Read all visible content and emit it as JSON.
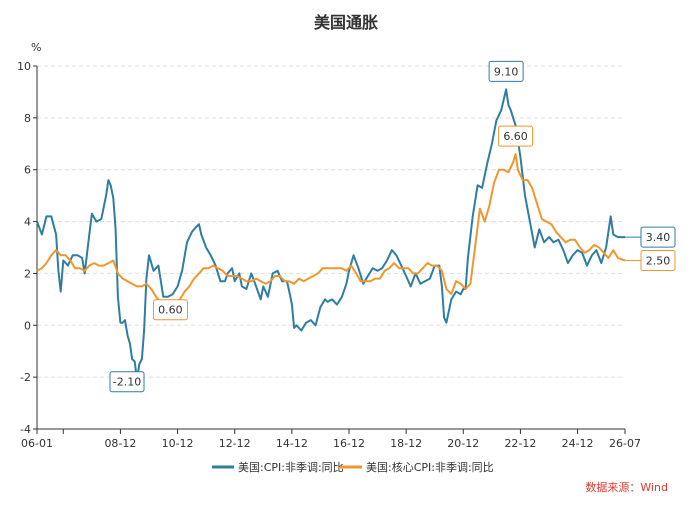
{
  "chart_data": {
    "type": "line",
    "title": "美国通胀",
    "ylabel": "%",
    "ylim": [
      -4,
      10
    ],
    "yticks": [
      -4,
      -2,
      0,
      2,
      4,
      6,
      8,
      10
    ],
    "xlim": [
      2006.0,
      2026.58
    ],
    "xticks": [
      {
        "x": 2006.0,
        "label": "06-01"
      },
      {
        "x": 2008.92,
        "label": "08-12"
      },
      {
        "x": 2010.92,
        "label": "10-12"
      },
      {
        "x": 2012.92,
        "label": "12-12"
      },
      {
        "x": 2014.92,
        "label": "14-12"
      },
      {
        "x": 2016.92,
        "label": "16-12"
      },
      {
        "x": 2018.92,
        "label": "18-12"
      },
      {
        "x": 2020.92,
        "label": "20-12"
      },
      {
        "x": 2022.92,
        "label": "22-12"
      },
      {
        "x": 2024.92,
        "label": "24-12"
      },
      {
        "x": 2026.58,
        "label": "26-07"
      }
    ],
    "grid": "horizontal-dashed",
    "legend_position": "bottom",
    "source": "数据来源：Wind",
    "series": [
      {
        "name": "美国:CPI:非季调:同比",
        "color": "#2e7ea3",
        "points": [
          [
            2006.0,
            4.0
          ],
          [
            2006.17,
            3.5
          ],
          [
            2006.33,
            4.2
          ],
          [
            2006.5,
            4.2
          ],
          [
            2006.67,
            3.5
          ],
          [
            2006.75,
            2.1
          ],
          [
            2006.83,
            1.3
          ],
          [
            2006.92,
            2.5
          ],
          [
            2007.08,
            2.3
          ],
          [
            2007.25,
            2.7
          ],
          [
            2007.42,
            2.7
          ],
          [
            2007.58,
            2.6
          ],
          [
            2007.67,
            2.0
          ],
          [
            2007.83,
            3.5
          ],
          [
            2007.92,
            4.3
          ],
          [
            2008.08,
            4.0
          ],
          [
            2008.25,
            4.1
          ],
          [
            2008.42,
            5.0
          ],
          [
            2008.5,
            5.6
          ],
          [
            2008.58,
            5.4
          ],
          [
            2008.67,
            4.9
          ],
          [
            2008.75,
            3.7
          ],
          [
            2008.83,
            1.1
          ],
          [
            2008.92,
            0.1
          ],
          [
            2009.0,
            0.1
          ],
          [
            2009.08,
            0.2
          ],
          [
            2009.17,
            -0.4
          ],
          [
            2009.25,
            -0.7
          ],
          [
            2009.33,
            -1.3
          ],
          [
            2009.42,
            -1.4
          ],
          [
            2009.5,
            -2.1
          ],
          [
            2009.58,
            -1.5
          ],
          [
            2009.67,
            -1.3
          ],
          [
            2009.75,
            -0.2
          ],
          [
            2009.83,
            1.8
          ],
          [
            2009.92,
            2.7
          ],
          [
            2010.08,
            2.1
          ],
          [
            2010.25,
            2.3
          ],
          [
            2010.42,
            1.1
          ],
          [
            2010.58,
            1.1
          ],
          [
            2010.75,
            1.2
          ],
          [
            2010.92,
            1.5
          ],
          [
            2011.08,
            2.1
          ],
          [
            2011.25,
            3.2
          ],
          [
            2011.42,
            3.6
          ],
          [
            2011.58,
            3.8
          ],
          [
            2011.67,
            3.9
          ],
          [
            2011.75,
            3.5
          ],
          [
            2011.92,
            3.0
          ],
          [
            2012.08,
            2.7
          ],
          [
            2012.25,
            2.3
          ],
          [
            2012.42,
            1.7
          ],
          [
            2012.58,
            1.7
          ],
          [
            2012.67,
            2.0
          ],
          [
            2012.83,
            2.2
          ],
          [
            2012.92,
            1.7
          ],
          [
            2013.08,
            2.0
          ],
          [
            2013.17,
            1.5
          ],
          [
            2013.33,
            1.4
          ],
          [
            2013.5,
            2.0
          ],
          [
            2013.67,
            1.5
          ],
          [
            2013.83,
            1.0
          ],
          [
            2013.92,
            1.5
          ],
          [
            2014.08,
            1.1
          ],
          [
            2014.25,
            2.0
          ],
          [
            2014.42,
            2.1
          ],
          [
            2014.58,
            1.7
          ],
          [
            2014.75,
            1.7
          ],
          [
            2014.83,
            1.3
          ],
          [
            2014.92,
            0.8
          ],
          [
            2015.0,
            -0.1
          ],
          [
            2015.08,
            0.0
          ],
          [
            2015.25,
            -0.2
          ],
          [
            2015.42,
            0.1
          ],
          [
            2015.58,
            0.2
          ],
          [
            2015.75,
            0.0
          ],
          [
            2015.92,
            0.7
          ],
          [
            2016.08,
            1.0
          ],
          [
            2016.17,
            0.9
          ],
          [
            2016.33,
            1.0
          ],
          [
            2016.5,
            0.8
          ],
          [
            2016.67,
            1.1
          ],
          [
            2016.83,
            1.6
          ],
          [
            2016.92,
            2.1
          ],
          [
            2017.08,
            2.7
          ],
          [
            2017.25,
            2.2
          ],
          [
            2017.42,
            1.6
          ],
          [
            2017.58,
            1.9
          ],
          [
            2017.75,
            2.2
          ],
          [
            2017.92,
            2.1
          ],
          [
            2018.08,
            2.2
          ],
          [
            2018.25,
            2.5
          ],
          [
            2018.42,
            2.9
          ],
          [
            2018.58,
            2.7
          ],
          [
            2018.75,
            2.3
          ],
          [
            2018.92,
            1.9
          ],
          [
            2019.08,
            1.5
          ],
          [
            2019.25,
            2.0
          ],
          [
            2019.42,
            1.6
          ],
          [
            2019.58,
            1.7
          ],
          [
            2019.75,
            1.8
          ],
          [
            2019.92,
            2.3
          ],
          [
            2020.08,
            2.3
          ],
          [
            2020.17,
            1.5
          ],
          [
            2020.25,
            0.3
          ],
          [
            2020.33,
            0.1
          ],
          [
            2020.5,
            1.0
          ],
          [
            2020.67,
            1.3
          ],
          [
            2020.83,
            1.2
          ],
          [
            2020.92,
            1.4
          ],
          [
            2021.0,
            1.4
          ],
          [
            2021.08,
            2.6
          ],
          [
            2021.25,
            4.2
          ],
          [
            2021.42,
            5.4
          ],
          [
            2021.58,
            5.3
          ],
          [
            2021.75,
            6.2
          ],
          [
            2021.92,
            7.0
          ],
          [
            2022.08,
            7.9
          ],
          [
            2022.25,
            8.3
          ],
          [
            2022.42,
            9.1
          ],
          [
            2022.5,
            8.5
          ],
          [
            2022.58,
            8.3
          ],
          [
            2022.75,
            7.7
          ],
          [
            2022.92,
            6.5
          ],
          [
            2023.08,
            5.0
          ],
          [
            2023.25,
            4.0
          ],
          [
            2023.42,
            3.0
          ],
          [
            2023.58,
            3.7
          ],
          [
            2023.75,
            3.2
          ],
          [
            2023.92,
            3.4
          ],
          [
            2024.08,
            3.2
          ],
          [
            2024.25,
            3.3
          ],
          [
            2024.42,
            2.9
          ],
          [
            2024.58,
            2.4
          ],
          [
            2024.75,
            2.7
          ],
          [
            2024.92,
            2.9
          ],
          [
            2025.08,
            2.8
          ],
          [
            2025.25,
            2.3
          ],
          [
            2025.42,
            2.7
          ],
          [
            2025.58,
            2.9
          ],
          [
            2025.75,
            2.4
          ],
          [
            2025.92,
            3.0
          ],
          [
            2026.08,
            4.2
          ],
          [
            2026.17,
            3.5
          ],
          [
            2026.33,
            3.4
          ],
          [
            2026.58,
            3.4
          ]
        ]
      },
      {
        "name": "美国:核心CPI:非季调:同比",
        "color": "#f0962e",
        "points": [
          [
            2006.0,
            2.1
          ],
          [
            2006.17,
            2.2
          ],
          [
            2006.33,
            2.4
          ],
          [
            2006.5,
            2.7
          ],
          [
            2006.67,
            2.9
          ],
          [
            2006.83,
            2.7
          ],
          [
            2007.0,
            2.7
          ],
          [
            2007.17,
            2.5
          ],
          [
            2007.33,
            2.2
          ],
          [
            2007.5,
            2.2
          ],
          [
            2007.67,
            2.1
          ],
          [
            2007.83,
            2.3
          ],
          [
            2008.0,
            2.4
          ],
          [
            2008.17,
            2.3
          ],
          [
            2008.33,
            2.3
          ],
          [
            2008.5,
            2.4
          ],
          [
            2008.67,
            2.5
          ],
          [
            2008.83,
            2.0
          ],
          [
            2009.0,
            1.8
          ],
          [
            2009.17,
            1.7
          ],
          [
            2009.33,
            1.6
          ],
          [
            2009.5,
            1.5
          ],
          [
            2009.67,
            1.5
          ],
          [
            2009.83,
            1.6
          ],
          [
            2010.0,
            1.4
          ],
          [
            2010.17,
            1.1
          ],
          [
            2010.33,
            0.9
          ],
          [
            2010.5,
            0.9
          ],
          [
            2010.67,
            0.6
          ],
          [
            2010.83,
            0.8
          ],
          [
            2011.0,
            1.0
          ],
          [
            2011.17,
            1.3
          ],
          [
            2011.33,
            1.5
          ],
          [
            2011.5,
            1.8
          ],
          [
            2011.67,
            2.0
          ],
          [
            2011.83,
            2.2
          ],
          [
            2012.0,
            2.2
          ],
          [
            2012.17,
            2.3
          ],
          [
            2012.33,
            2.2
          ],
          [
            2012.5,
            2.1
          ],
          [
            2012.67,
            1.9
          ],
          [
            2012.83,
            1.9
          ],
          [
            2013.0,
            1.9
          ],
          [
            2013.17,
            1.8
          ],
          [
            2013.33,
            1.7
          ],
          [
            2013.5,
            1.7
          ],
          [
            2013.67,
            1.8
          ],
          [
            2013.83,
            1.7
          ],
          [
            2014.0,
            1.6
          ],
          [
            2014.17,
            1.7
          ],
          [
            2014.33,
            1.9
          ],
          [
            2014.5,
            1.9
          ],
          [
            2014.67,
            1.7
          ],
          [
            2014.83,
            1.7
          ],
          [
            2015.0,
            1.6
          ],
          [
            2015.17,
            1.8
          ],
          [
            2015.33,
            1.7
          ],
          [
            2015.5,
            1.8
          ],
          [
            2015.67,
            1.9
          ],
          [
            2015.83,
            2.0
          ],
          [
            2016.0,
            2.2
          ],
          [
            2016.17,
            2.2
          ],
          [
            2016.33,
            2.2
          ],
          [
            2016.5,
            2.2
          ],
          [
            2016.67,
            2.2
          ],
          [
            2016.83,
            2.1
          ],
          [
            2017.0,
            2.3
          ],
          [
            2017.17,
            2.0
          ],
          [
            2017.33,
            1.7
          ],
          [
            2017.5,
            1.7
          ],
          [
            2017.67,
            1.7
          ],
          [
            2017.83,
            1.8
          ],
          [
            2018.0,
            1.8
          ],
          [
            2018.17,
            2.1
          ],
          [
            2018.33,
            2.2
          ],
          [
            2018.5,
            2.4
          ],
          [
            2018.67,
            2.2
          ],
          [
            2018.83,
            2.2
          ],
          [
            2019.0,
            2.2
          ],
          [
            2019.17,
            2.0
          ],
          [
            2019.33,
            2.0
          ],
          [
            2019.5,
            2.2
          ],
          [
            2019.67,
            2.4
          ],
          [
            2019.83,
            2.3
          ],
          [
            2020.0,
            2.3
          ],
          [
            2020.17,
            2.1
          ],
          [
            2020.33,
            1.4
          ],
          [
            2020.5,
            1.2
          ],
          [
            2020.67,
            1.7
          ],
          [
            2020.83,
            1.6
          ],
          [
            2021.0,
            1.4
          ],
          [
            2021.17,
            1.6
          ],
          [
            2021.33,
            3.0
          ],
          [
            2021.5,
            4.5
          ],
          [
            2021.67,
            4.0
          ],
          [
            2021.83,
            4.6
          ],
          [
            2022.0,
            5.5
          ],
          [
            2022.17,
            6.0
          ],
          [
            2022.33,
            6.0
          ],
          [
            2022.5,
            5.9
          ],
          [
            2022.67,
            6.3
          ],
          [
            2022.75,
            6.6
          ],
          [
            2022.83,
            6.0
          ],
          [
            2023.0,
            5.6
          ],
          [
            2023.17,
            5.6
          ],
          [
            2023.33,
            5.3
          ],
          [
            2023.5,
            4.7
          ],
          [
            2023.67,
            4.1
          ],
          [
            2023.83,
            4.0
          ],
          [
            2024.0,
            3.9
          ],
          [
            2024.17,
            3.6
          ],
          [
            2024.33,
            3.4
          ],
          [
            2024.5,
            3.2
          ],
          [
            2024.67,
            3.3
          ],
          [
            2024.83,
            3.3
          ],
          [
            2025.0,
            3.0
          ],
          [
            2025.17,
            2.8
          ],
          [
            2025.33,
            2.9
          ],
          [
            2025.5,
            3.1
          ],
          [
            2025.67,
            3.0
          ],
          [
            2025.83,
            2.8
          ],
          [
            2026.0,
            2.6
          ],
          [
            2026.17,
            2.9
          ],
          [
            2026.33,
            2.6
          ],
          [
            2026.58,
            2.5
          ]
        ]
      }
    ],
    "callouts": [
      {
        "series": 0,
        "x": 2022.42,
        "y": 9.1,
        "label": "9.10",
        "position": "above"
      },
      {
        "series": 1,
        "x": 2022.75,
        "y": 6.6,
        "label": "6.60",
        "position": "above"
      },
      {
        "series": 0,
        "x": 2009.5,
        "y": -2.1,
        "label": "-2.10",
        "position": "below"
      },
      {
        "series": 1,
        "x": 2010.67,
        "y": 0.6,
        "label": "0.60",
        "position": "above-left"
      },
      {
        "series": 0,
        "x": 2026.58,
        "y": 3.4,
        "label": "3.40",
        "position": "right"
      },
      {
        "series": 1,
        "x": 2026.58,
        "y": 2.5,
        "label": "2.50",
        "position": "right"
      }
    ]
  }
}
